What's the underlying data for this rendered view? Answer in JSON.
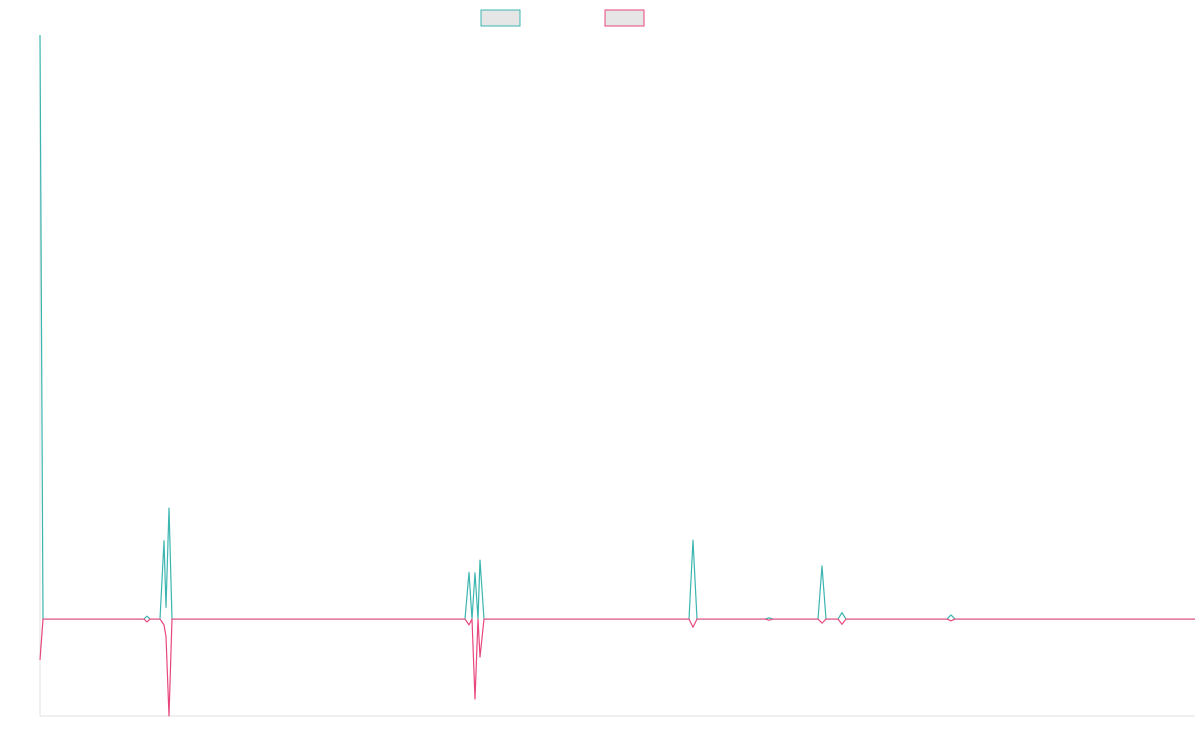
{
  "chart_data": {
    "type": "line",
    "x": [
      0,
      3,
      104,
      107,
      110,
      120,
      124,
      126,
      129,
      132,
      425,
      429,
      432,
      435,
      438,
      440,
      444,
      649,
      653,
      657,
      725,
      729,
      733,
      778,
      782,
      786,
      798,
      802,
      806,
      907,
      911,
      915,
      1155
    ],
    "series": [
      {
        "color": "#3bb5b0",
        "values": [
          100,
          0,
          0,
          0.5,
          0,
          0,
          13.4,
          2,
          19,
          0,
          0,
          8,
          0,
          7.9,
          0,
          10.1,
          0,
          0,
          13.5,
          0,
          0,
          0.2,
          0,
          0,
          9.1,
          0,
          0,
          1.1,
          0,
          0,
          0.7,
          0,
          0
        ]
      },
      {
        "color": "#e8467c",
        "values": [
          -7,
          0,
          0,
          -0.5,
          0,
          0,
          -1,
          -3,
          -16.6,
          0,
          0,
          -1,
          0,
          -13.7,
          0,
          -6.5,
          0,
          0,
          -1.4,
          0,
          0,
          -0.2,
          0,
          0,
          -0.7,
          0,
          0,
          -0.9,
          0,
          0,
          -0.3,
          0,
          0
        ]
      }
    ],
    "xlim": [
      0,
      1155
    ],
    "ylim": [
      -16.6,
      100
    ]
  }
}
